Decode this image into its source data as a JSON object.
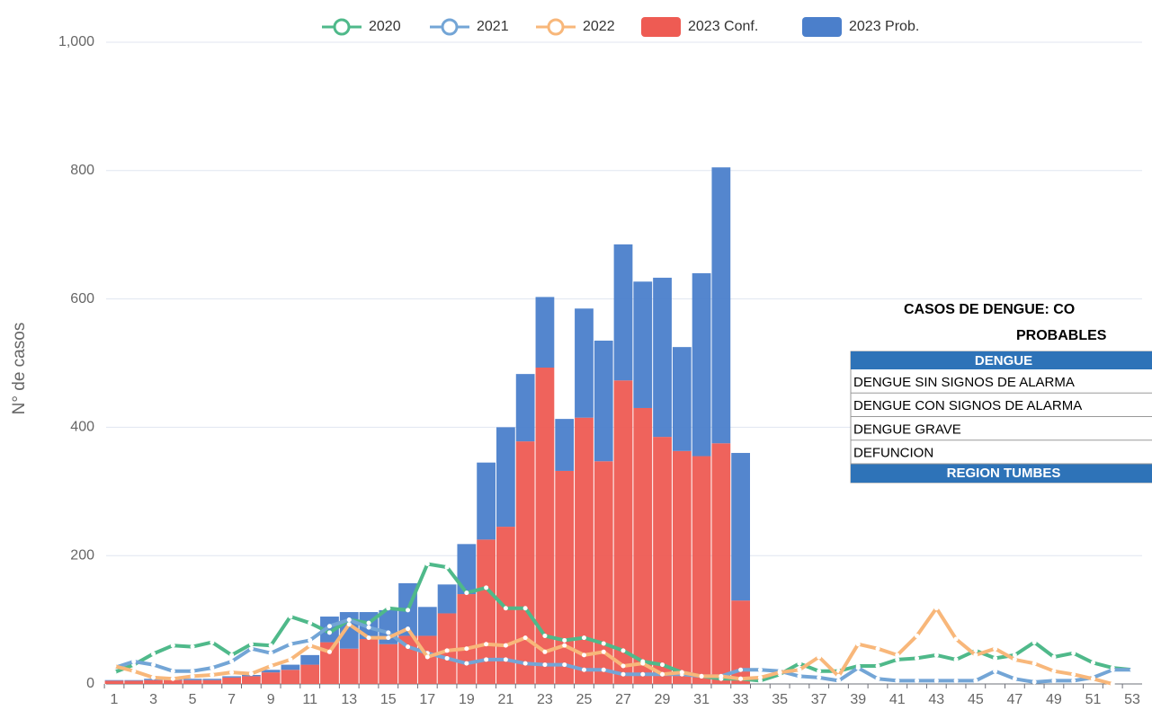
{
  "chart_data": {
    "type": "bar",
    "ylabel": "N° de casos",
    "categories": [
      1,
      null,
      3,
      null,
      5,
      null,
      7,
      null,
      9,
      null,
      11,
      null,
      13,
      null,
      15,
      null,
      17,
      null,
      19,
      null,
      21,
      null,
      23,
      null,
      25,
      null,
      27,
      null,
      29,
      null,
      31,
      null,
      33,
      null,
      35,
      null,
      37,
      null,
      39,
      null,
      41,
      null,
      43,
      null,
      45,
      null,
      47,
      null,
      49,
      null,
      51,
      null,
      53
    ],
    "ylim": [
      0,
      1000
    ],
    "yticks": [
      0,
      200,
      400,
      600,
      800,
      {
        "value": 1000,
        "label": "1,000"
      }
    ],
    "grid": true,
    "series": [
      {
        "name": "2020",
        "type": "line",
        "color": "#4fb98a",
        "values": [
          18,
          30,
          47,
          60,
          58,
          65,
          45,
          62,
          60,
          105,
          95,
          80,
          100,
          95,
          118,
          115,
          187,
          182,
          142,
          150,
          118,
          118,
          75,
          68,
          72,
          63,
          52,
          35,
          30,
          18,
          12,
          8,
          8,
          5,
          15,
          32,
          20,
          20,
          28,
          28,
          38,
          40,
          45,
          38,
          52,
          40,
          45,
          65,
          42,
          48,
          33,
          25,
          22
        ]
      },
      {
        "name": "2021",
        "type": "line",
        "color": "#73a5d6",
        "values": [
          25,
          35,
          30,
          20,
          20,
          25,
          35,
          55,
          48,
          62,
          68,
          90,
          100,
          88,
          80,
          58,
          48,
          40,
          32,
          38,
          38,
          32,
          30,
          30,
          22,
          22,
          15,
          15,
          15,
          15,
          12,
          12,
          22,
          22,
          20,
          12,
          10,
          5,
          25,
          8,
          5,
          5,
          5,
          5,
          5,
          20,
          8,
          3,
          5,
          5,
          10,
          22,
          22
        ]
      },
      {
        "name": "2022",
        "type": "line",
        "color": "#f8b77a",
        "values": [
          28,
          20,
          10,
          8,
          12,
          14,
          18,
          16,
          28,
          38,
          60,
          50,
          93,
          72,
          72,
          86,
          42,
          52,
          55,
          62,
          60,
          72,
          50,
          60,
          45,
          50,
          28,
          32,
          15,
          18,
          12,
          12,
          8,
          10,
          18,
          22,
          42,
          12,
          62,
          55,
          45,
          75,
          118,
          70,
          45,
          55,
          38,
          32,
          20,
          15,
          8,
          0,
          null
        ]
      },
      {
        "name": "2023 Conf.",
        "type": "stack",
        "color": "#ee5b53",
        "values": [
          5,
          5,
          6,
          6,
          6,
          6,
          10,
          12,
          18,
          22,
          30,
          65,
          55,
          70,
          62,
          75,
          75,
          110,
          140,
          225,
          245,
          378,
          493,
          332,
          415,
          347,
          473,
          430,
          385,
          363,
          355,
          375,
          130,
          null,
          null,
          null,
          null,
          null,
          null,
          null,
          null,
          null,
          null,
          null,
          null,
          null,
          null,
          null,
          null,
          null,
          null,
          null,
          null
        ]
      },
      {
        "name": "2023 Prob.",
        "type": "stack",
        "color": "#4b7fcb",
        "values": [
          1,
          1,
          2,
          2,
          2,
          2,
          2,
          2,
          4,
          8,
          15,
          40,
          57,
          42,
          53,
          82,
          45,
          45,
          78,
          120,
          155,
          105,
          110,
          81,
          170,
          188,
          212,
          197,
          248,
          162,
          285,
          430,
          230,
          null,
          null,
          null,
          null,
          null,
          null,
          null,
          null,
          null,
          null,
          null,
          null,
          null,
          null,
          null,
          null,
          null,
          null,
          null,
          null
        ]
      }
    ]
  },
  "table": {
    "title": [
      "CASOS DE DENGUE: CO",
      "PROBABLES"
    ],
    "header": "DENGUE",
    "rows": [
      "DENGUE SIN SIGNOS DE ALARMA",
      "DENGUE CON SIGNOS DE ALARMA",
      "DENGUE GRAVE",
      "DEFUNCION"
    ],
    "footer": "REGION TUMBES"
  }
}
